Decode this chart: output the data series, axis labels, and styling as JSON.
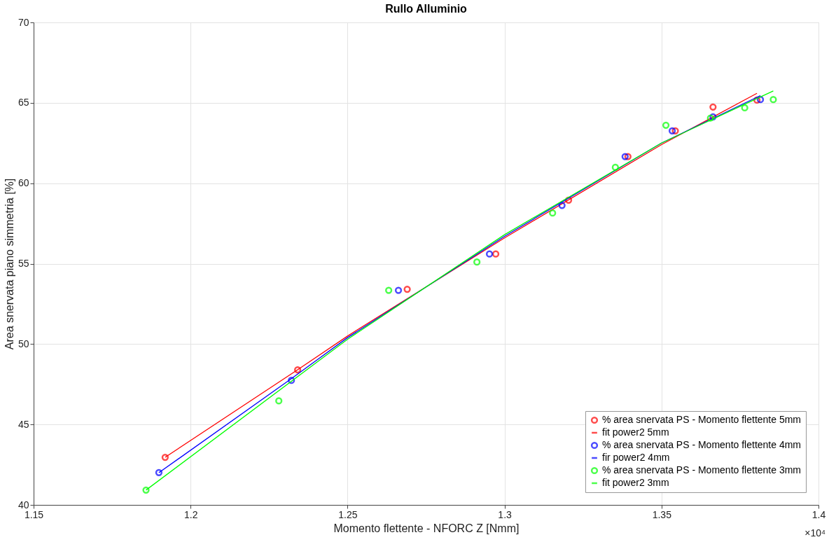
{
  "chart_data": {
    "type": "scatter",
    "title": "Rullo Alluminio",
    "xlabel": "Momento flettente - NFORC Z [Nmm]",
    "ylabel": "Area snervata piano simmetria [%]",
    "annotations": [
      "×10⁴"
    ],
    "xlim": [
      1.15,
      1.4
    ],
    "xticks": [
      1.15,
      1.2,
      1.25,
      1.3,
      1.35,
      1.4
    ],
    "ylim": [
      40,
      70
    ],
    "yticks": [
      40,
      45,
      50,
      55,
      60,
      65,
      70
    ],
    "grid": true,
    "legend": "bottom right",
    "marker": "circle",
    "series": [
      {
        "name": "% area snervata PS - Momento flettente 5mm",
        "color": "#ff0000",
        "x": [
          1.1919,
          1.2341,
          1.269,
          1.2972,
          1.3204,
          1.3393,
          1.3544,
          1.3664,
          1.3804
        ],
        "values": [
          42.96,
          48.4,
          53.41,
          55.6,
          58.95,
          61.66,
          63.26,
          64.74,
          65.17
        ]
      },
      {
        "name": "fit power2 5mm",
        "type": "line",
        "marker": "none",
        "color": "#ff0000",
        "x": [
          1.1919,
          1.2341,
          1.25,
          1.3,
          1.35,
          1.3804
        ],
        "values": [
          42.96,
          48.4,
          50.5,
          56.6,
          62.4,
          65.59
        ]
      },
      {
        "name": "% area snervata PS - Momento flettente 4mm",
        "color": "#0000ff",
        "x": [
          1.1899,
          1.2321,
          1.2662,
          1.2952,
          1.3183,
          1.3384,
          1.3534,
          1.3664,
          1.3815
        ],
        "values": [
          42.01,
          47.74,
          53.34,
          55.6,
          58.62,
          61.66,
          63.26,
          64.13,
          65.2
        ]
      },
      {
        "name": "fir power2 4mm",
        "type": "line",
        "marker": "none",
        "color": "#0000ff",
        "x": [
          1.1899,
          1.2321,
          1.25,
          1.3,
          1.35,
          1.3815
        ],
        "values": [
          42.0,
          47.85,
          50.4,
          56.7,
          62.5,
          65.45
        ]
      },
      {
        "name": "% area snervata PS - Momento flettente 3mm",
        "color": "#00ff00",
        "x": [
          1.1858,
          1.2281,
          1.2631,
          1.2912,
          1.3153,
          1.3353,
          1.3514,
          1.3656,
          1.3765,
          1.3856
        ],
        "values": [
          40.92,
          46.47,
          53.34,
          55.1,
          58.15,
          60.99,
          63.61,
          64.05,
          64.69,
          65.2
        ]
      },
      {
        "name": "fit power2 3mm",
        "type": "line",
        "marker": "none",
        "color": "#00ff00",
        "x": [
          1.1858,
          1.25,
          1.3,
          1.35,
          1.3856
        ],
        "values": [
          40.92,
          50.3,
          56.8,
          62.5,
          65.74
        ]
      }
    ]
  }
}
